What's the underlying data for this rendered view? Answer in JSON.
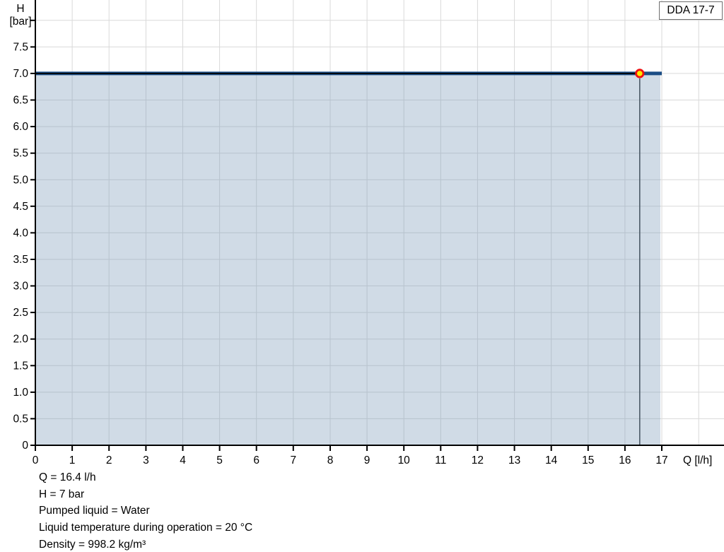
{
  "legend": {
    "label": "DDA 17-7",
    "position": "top-right"
  },
  "info_lines": [
    "Q = 16.4 l/h",
    "H = 7 bar",
    "Pumped liquid = Water",
    "Liquid temperature during operation = 20 °C",
    "Density = 998.2 kg/m³"
  ],
  "chart_data": {
    "type": "area",
    "title": "",
    "xlabel": "Q [l/h]",
    "ylabel_lines": [
      "H",
      "[bar]"
    ],
    "xlim": [
      0,
      17
    ],
    "ylim": [
      0,
      8
    ],
    "x_ticks": [
      0,
      1,
      2,
      3,
      4,
      5,
      6,
      7,
      8,
      9,
      10,
      11,
      12,
      13,
      14,
      15,
      16,
      17
    ],
    "y_ticks": [
      0,
      0.5,
      1,
      1.5,
      2,
      2.5,
      3,
      3.5,
      4,
      4.5,
      5,
      5.5,
      6,
      6.5,
      7,
      7.5
    ],
    "grid": true,
    "legend_position": "top-right",
    "series": [
      {
        "name": "DDA 17-7",
        "x": [
          0,
          17
        ],
        "y": [
          7,
          7
        ]
      }
    ],
    "operating_point": {
      "Q": 16.4,
      "H": 7,
      "Q_unit": "l/h",
      "H_unit": "bar"
    },
    "area_under_curve": true,
    "colors": {
      "curve": "#1a4c85",
      "operating_line": "#000000",
      "area": "rgba(125,155,185,0.36)",
      "grid": "#d9d9d9",
      "axis": "#000000",
      "marker_fill": "#ffe800",
      "marker_ring": "#ee1111",
      "drop_line": "#4d5c68",
      "legend_border": "#6e6e6e"
    }
  }
}
